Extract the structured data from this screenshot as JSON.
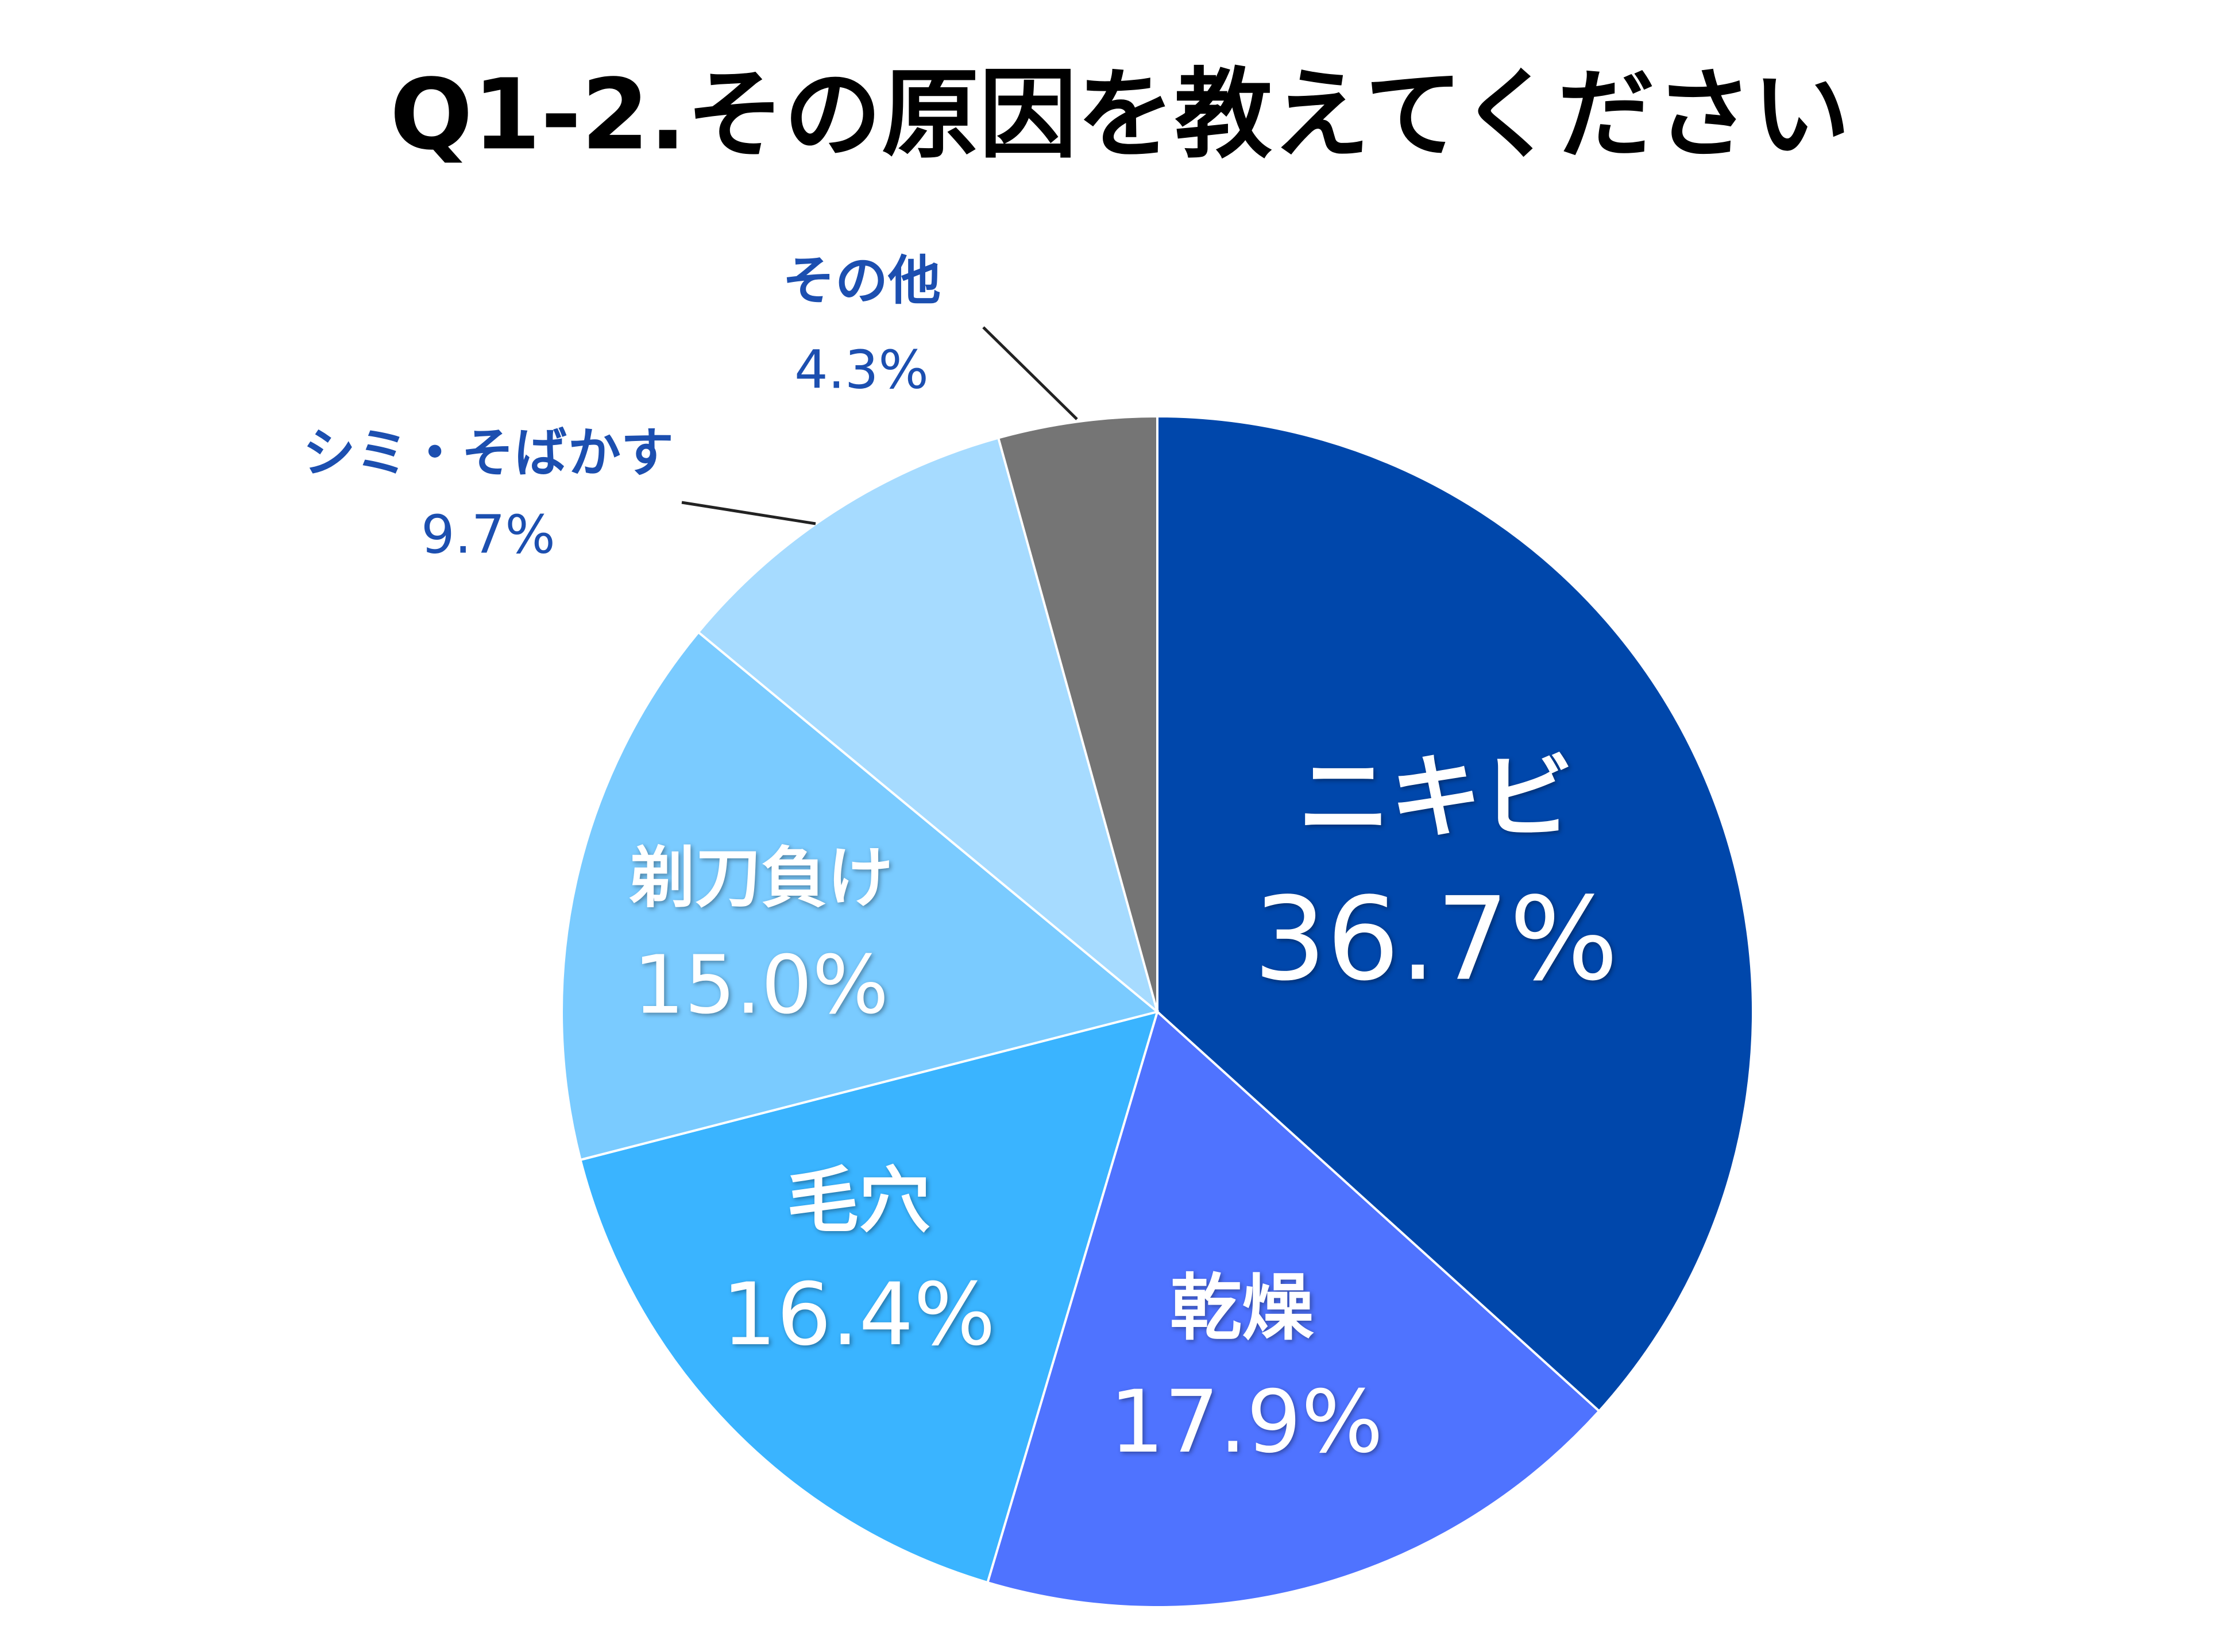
{
  "chart_data": {
    "type": "pie",
    "title": "Q1-2.その原因を教えてください",
    "categories": [
      "ニキビ",
      "乾燥",
      "毛穴",
      "剃刀負け",
      "シミ・そばかす",
      "その他"
    ],
    "values": [
      36.7,
      17.9,
      16.4,
      15.0,
      9.7,
      4.3
    ],
    "value_labels": [
      "36.7%",
      "17.9%",
      "16.4%",
      "15.0%",
      "9.7%",
      "4.3%"
    ],
    "colors": [
      "#0047ab",
      "#4f73ff",
      "#3ab4ff",
      "#7acbff",
      "#a6dbff",
      "#757575"
    ]
  }
}
